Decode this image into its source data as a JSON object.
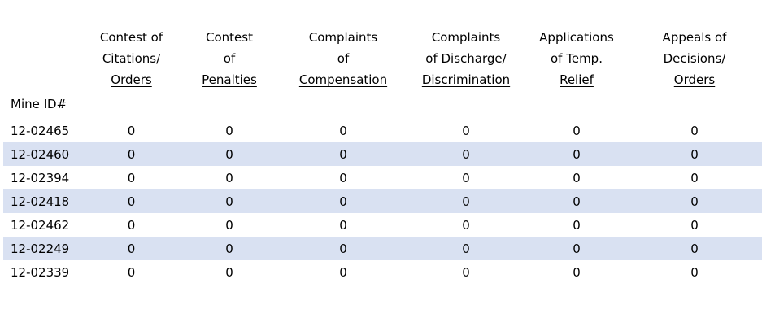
{
  "colors": {
    "background": "#ffffff",
    "text": "#000000",
    "row_band": "#d9e1f2"
  },
  "chart_data": {
    "type": "table",
    "title": "",
    "id_header": "Mine ID#",
    "legend": "none",
    "grid": "zebra-striped rows, no cell borders",
    "columns": [
      {
        "lines": [
          "Contest of",
          "Citations/",
          "Orders"
        ]
      },
      {
        "lines": [
          "Contest",
          "of",
          "Penalties"
        ]
      },
      {
        "lines": [
          "Complaints",
          "of",
          "Compensation"
        ]
      },
      {
        "lines": [
          "Complaints",
          "of Discharge/",
          "Discrimination"
        ]
      },
      {
        "lines": [
          "Applications",
          "of Temp.",
          "Relief"
        ]
      },
      {
        "lines": [
          "Appeals of",
          "Decisions/",
          "Orders"
        ]
      }
    ],
    "rows": [
      {
        "mine_id": "12-02465",
        "values": [
          "0",
          "0",
          "0",
          "0",
          "0",
          "0"
        ]
      },
      {
        "mine_id": "12-02460",
        "values": [
          "0",
          "0",
          "0",
          "0",
          "0",
          "0"
        ]
      },
      {
        "mine_id": "12-02394",
        "values": [
          "0",
          "0",
          "0",
          "0",
          "0",
          "0"
        ]
      },
      {
        "mine_id": "12-02418",
        "values": [
          "0",
          "0",
          "0",
          "0",
          "0",
          "0"
        ]
      },
      {
        "mine_id": "12-02462",
        "values": [
          "0",
          "0",
          "0",
          "0",
          "0",
          "0"
        ]
      },
      {
        "mine_id": "12-02249",
        "values": [
          "0",
          "0",
          "0",
          "0",
          "0",
          "0"
        ]
      },
      {
        "mine_id": "12-02339",
        "values": [
          "0",
          "0",
          "0",
          "0",
          "0",
          "0"
        ]
      }
    ]
  }
}
